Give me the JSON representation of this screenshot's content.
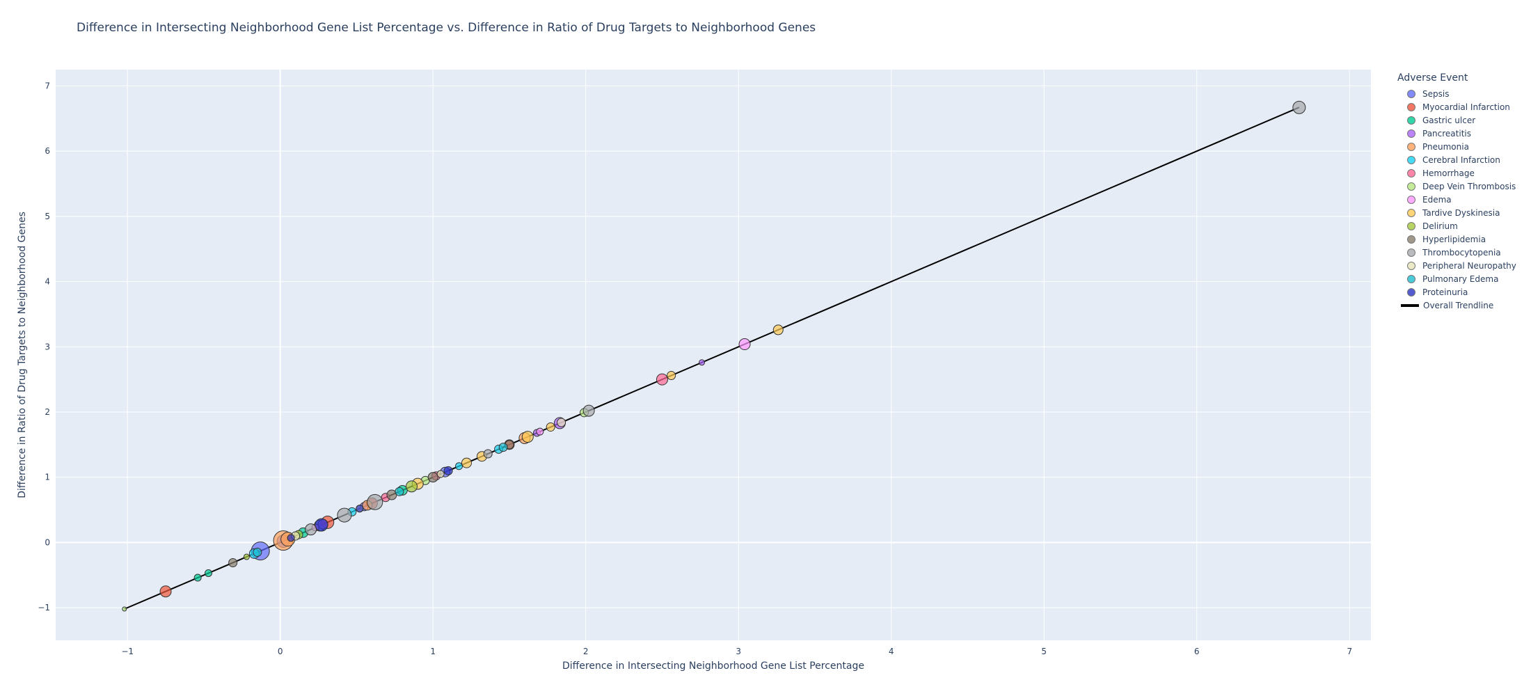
{
  "chart_data": {
    "type": "scatter",
    "title": "Difference in Intersecting Neighborhood Gene List Percentage vs. Difference in Ratio of Drug Targets to Neighborhood Genes",
    "xlabel": "Difference in Intersecting Neighborhood Gene List Percentage",
    "ylabel": "Difference in Ratio of Drug Targets to Neighborhood Genes",
    "xlim": [
      -1.47,
      7.14
    ],
    "ylim": [
      -1.5,
      7.25
    ],
    "xticks": [
      -1,
      0,
      1,
      2,
      3,
      4,
      5,
      6,
      7
    ],
    "yticks": [
      -1,
      0,
      1,
      2,
      3,
      4,
      5,
      6,
      7
    ],
    "xtick_labels": [
      "−1",
      "0",
      "1",
      "2",
      "3",
      "4",
      "5",
      "6",
      "7"
    ],
    "ytick_labels": [
      "−1",
      "0",
      "1",
      "2",
      "3",
      "4",
      "5",
      "6",
      "7"
    ],
    "grid": true,
    "legend_title": "Adverse Event",
    "legend_position": "right",
    "series": [
      {
        "name": "Sepsis",
        "color": "#636efa",
        "points": [
          [
            -0.13,
            -0.13,
            13
          ],
          [
            0.02,
            0.02,
            9
          ],
          [
            0.26,
            0.26,
            8
          ],
          [
            0.55,
            0.55,
            6
          ],
          [
            1.08,
            1.08,
            7
          ]
        ]
      },
      {
        "name": "Myocardial Infarction",
        "color": "#ef553b",
        "points": [
          [
            -0.75,
            -0.75,
            8
          ],
          [
            0.31,
            0.31,
            9
          ],
          [
            0.6,
            0.6,
            8
          ],
          [
            1.5,
            1.5,
            7
          ]
        ]
      },
      {
        "name": "Gastric ulcer",
        "color": "#00cc96",
        "points": [
          [
            -0.54,
            -0.54,
            5
          ],
          [
            -0.47,
            -0.47,
            5
          ],
          [
            0.15,
            0.15,
            7
          ],
          [
            0.8,
            0.8,
            7
          ]
        ]
      },
      {
        "name": "Pancreatitis",
        "color": "#ab63fa",
        "points": [
          [
            0.28,
            0.28,
            7
          ],
          [
            1.83,
            1.83,
            8
          ],
          [
            2.76,
            2.76,
            4
          ],
          [
            1.68,
            1.68,
            5
          ]
        ]
      },
      {
        "name": "Pneumonia",
        "color": "#ffa15a",
        "points": [
          [
            0.02,
            0.03,
            14
          ],
          [
            0.05,
            0.05,
            10
          ],
          [
            0.57,
            0.57,
            7
          ],
          [
            1.6,
            1.6,
            8
          ]
        ]
      },
      {
        "name": "Cerebral Infarction",
        "color": "#19d3f3",
        "points": [
          [
            -0.17,
            -0.17,
            7
          ],
          [
            0.47,
            0.47,
            6
          ],
          [
            1.17,
            1.17,
            5
          ],
          [
            1.43,
            1.43,
            6
          ]
        ]
      },
      {
        "name": "Hemorrhage",
        "color": "#ff6692",
        "points": [
          [
            2.5,
            2.5,
            8
          ],
          [
            0.69,
            0.69,
            6
          ],
          [
            1.02,
            1.02,
            6
          ]
        ]
      },
      {
        "name": "Deep Vein Thrombosis",
        "color": "#b6e880",
        "points": [
          [
            -1.02,
            -1.02,
            3
          ],
          [
            0.95,
            0.95,
            6
          ],
          [
            1.99,
            1.99,
            6
          ]
        ]
      },
      {
        "name": "Edema",
        "color": "#ff97ff",
        "points": [
          [
            3.04,
            3.04,
            8
          ],
          [
            1.7,
            1.7,
            5
          ],
          [
            0.23,
            0.23,
            5
          ]
        ]
      },
      {
        "name": "Tardive Dyskinesia",
        "color": "#fecb52",
        "points": [
          [
            3.26,
            3.26,
            7
          ],
          [
            1.22,
            1.22,
            7
          ],
          [
            0.9,
            0.9,
            8
          ],
          [
            1.77,
            1.77,
            6
          ],
          [
            2.56,
            2.56,
            6
          ],
          [
            1.62,
            1.62,
            8
          ],
          [
            1.32,
            1.32,
            7
          ]
        ]
      },
      {
        "name": "Delirium",
        "color": "#a6c93c",
        "points": [
          [
            -0.22,
            -0.22,
            4
          ],
          [
            0.86,
            0.86,
            8
          ],
          [
            0.12,
            0.12,
            6
          ]
        ]
      },
      {
        "name": "Hyperlipidemia",
        "color": "#8c7f6e",
        "points": [
          [
            -0.31,
            -0.31,
            6
          ],
          [
            0.73,
            0.73,
            7
          ],
          [
            1.0,
            1.0,
            7
          ],
          [
            1.5,
            1.5,
            6
          ]
        ]
      },
      {
        "name": "Thrombocytopenia",
        "color": "#a7aaad",
        "points": [
          [
            6.67,
            6.67,
            9
          ],
          [
            0.42,
            0.42,
            10
          ],
          [
            2.02,
            2.02,
            8
          ],
          [
            0.62,
            0.62,
            11
          ],
          [
            0.2,
            0.2,
            8
          ],
          [
            1.36,
            1.36,
            6
          ]
        ]
      },
      {
        "name": "Peripheral Neuropathy",
        "color": "#e8e6b8",
        "points": [
          [
            0.1,
            0.1,
            6
          ],
          [
            1.84,
            1.84,
            6
          ],
          [
            0.52,
            0.52,
            5
          ],
          [
            1.05,
            1.05,
            5
          ]
        ]
      },
      {
        "name": "Pulmonary Edema",
        "color": "#1ebfd0",
        "points": [
          [
            1.46,
            1.46,
            6
          ],
          [
            -0.15,
            -0.15,
            6
          ],
          [
            0.78,
            0.78,
            6
          ]
        ]
      },
      {
        "name": "Proteinuria",
        "color": "#2a33c2",
        "points": [
          [
            0.27,
            0.27,
            9
          ],
          [
            1.1,
            1.1,
            6
          ],
          [
            0.52,
            0.52,
            5
          ],
          [
            0.07,
            0.07,
            5
          ]
        ]
      }
    ],
    "trendline": {
      "name": "Overall Trendline",
      "x": [
        -1.02,
        6.67
      ],
      "y": [
        -1.02,
        6.67
      ],
      "color": "#000000"
    }
  }
}
